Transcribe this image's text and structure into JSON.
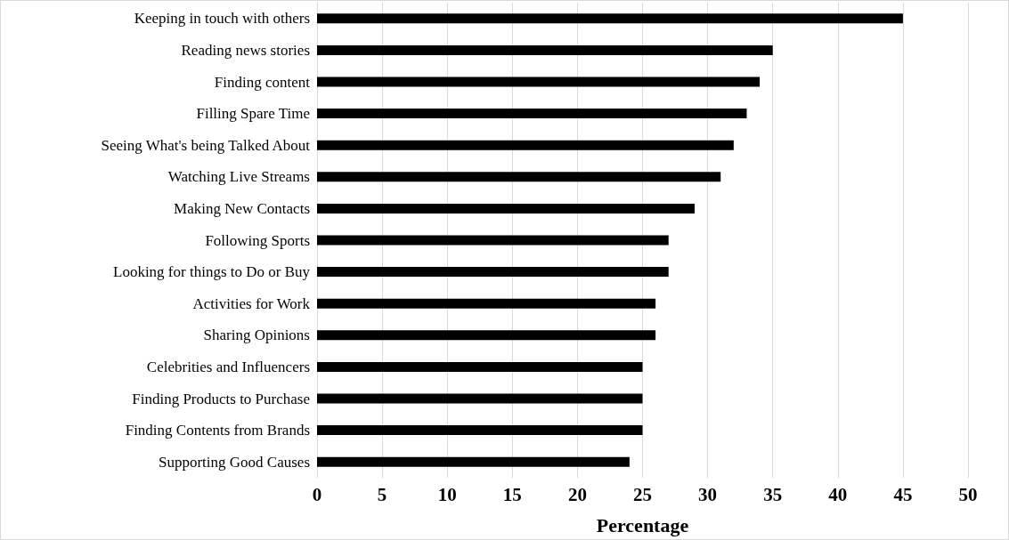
{
  "chart_data": {
    "type": "bar",
    "orientation": "horizontal",
    "xlabel": "Percentage",
    "categories": [
      "Keeping in touch with others",
      "Reading news stories",
      "Finding content",
      "Filling Spare Time",
      "Seeing What's being Talked About",
      "Watching Live Streams",
      "Making New Contacts",
      "Following Sports",
      "Looking for things to Do or Buy",
      "Activities for Work",
      "Sharing Opinions",
      "Celebrities and Influencers",
      "Finding Products to Purchase",
      "Finding Contents from Brands",
      "Supporting Good Causes"
    ],
    "values": [
      45,
      35,
      34,
      33,
      32,
      31,
      29,
      27,
      27,
      26,
      26,
      25,
      25,
      25,
      24
    ],
    "color": "#000000",
    "xlim": [
      0,
      50
    ],
    "xticks": [
      0,
      5,
      10,
      15,
      20,
      25,
      30,
      35,
      40,
      45,
      50
    ],
    "grid": "x"
  }
}
